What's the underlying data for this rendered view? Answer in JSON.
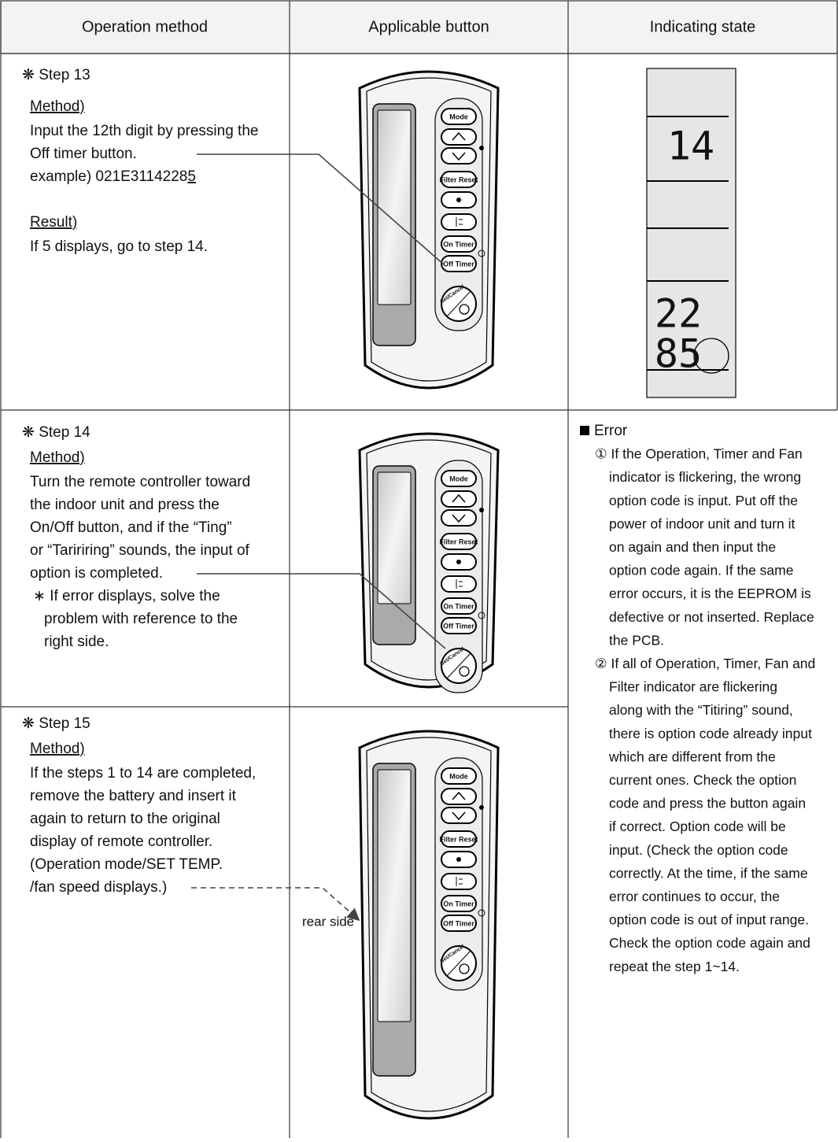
{
  "header": [
    "Operation method",
    "Applicable button",
    "Indicating state"
  ],
  "steps": [
    {
      "title": "❋ Step 13",
      "method_label": "Method)",
      "method_lines": [
        "Input the 12th digit by pressing the",
        "Off timer button."
      ],
      "example": [
        "example) 021E3114228",
        "5"
      ],
      "result_label": "Result)",
      "result_lines": [
        "If 5 displays, go to step 14."
      ]
    },
    {
      "title": "❋ Step 14",
      "method_label": "Method)",
      "method_lines": [
        "Turn the remote controller toward",
        "the indoor unit and press the",
        "On/Off button, and  if the “Ting”",
        "or “Taririring” sounds, the input of",
        "option is completed."
      ],
      "note_lines": [
        "∗ If error displays, solve the",
        "problem with reference to the",
        "right side."
      ]
    },
    {
      "title": "❋ Step 15",
      "method_label": "Method)",
      "method_lines": [
        "If the steps 1 to 14 are completed,",
        "remove the battery and insert it",
        "again to return to the original",
        "display of remote controller.",
        "(Operation mode/SET TEMP.",
        "/fan speed displays.)"
      ]
    }
  ],
  "remote_buttons": [
    "Mode",
    "Filter Reset",
    "On Timer",
    "Off Timer",
    "Set/Cancel"
  ],
  "display_digits": [
    "14",
    "22",
    "85"
  ],
  "rear_side": "rear side",
  "error": {
    "title": "Error",
    "items": [
      [
        "① If the Operation, Timer and Fan",
        "indicator is flickering, the wrong",
        "option code is input. Put off the",
        "power of indoor unit and turn it",
        "on again and then input the",
        "option code again. If the same",
        "error occurs, it is the EEPROM is",
        "defective or not inserted. Replace",
        "the PCB."
      ],
      [
        "② If all of Operation, Timer, Fan and",
        "Filter indicator are flickering",
        "along with the “Titiring” sound,",
        "there is option code already input",
        "which are different from the",
        "current ones. Check the option",
        "code and press the button again",
        "if correct. Option code will be",
        "input. (Check the option code",
        "correctly. At the time, if the same",
        "error continues to occur, the",
        "option code is out of input range.",
        "Check the option code again and",
        "repeat the step 1~14."
      ]
    ]
  }
}
